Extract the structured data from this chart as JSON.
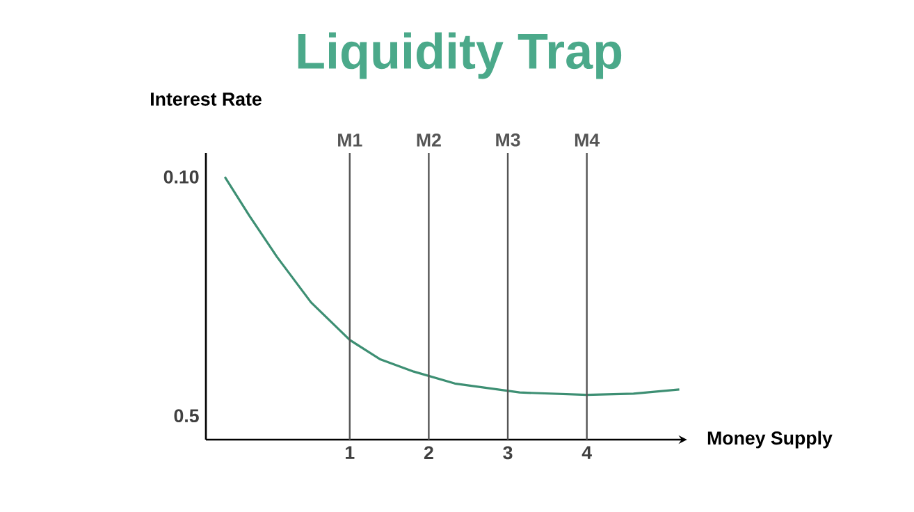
{
  "chart_data": {
    "type": "line",
    "title": "Liquidity Trap",
    "xlabel": "Money Supply",
    "ylabel": "Interest Rate",
    "x": [
      -0.58,
      -0.27,
      0.08,
      0.51,
      1.0,
      1.38,
      1.81,
      2.33,
      3.15,
      4.0,
      4.59,
      5.17
    ],
    "series": [
      {
        "color": "#3d8f73",
        "values": [
          0.1,
          0.165,
          0.234,
          0.31,
          0.373,
          0.405,
          0.426,
          0.446,
          0.461,
          0.465,
          0.463,
          0.456
        ]
      }
    ],
    "xlim": [
      -0.82,
      5.2
    ],
    "xticks": [
      1,
      2,
      3,
      4
    ],
    "ylim": [
      0.54,
      0.06
    ],
    "yticks": [
      {
        "value": 0.1,
        "label": "0.10"
      },
      0.5
    ],
    "ref_lines": [
      {
        "axis": "x",
        "value": 1,
        "label": "M1",
        "color": "#555555"
      },
      {
        "axis": "x",
        "value": 2,
        "label": "M2",
        "color": "#555555"
      },
      {
        "axis": "x",
        "value": 3,
        "label": "M3",
        "color": "#555555"
      },
      {
        "axis": "x",
        "value": 4,
        "label": "M4",
        "color": "#555555"
      }
    ]
  }
}
